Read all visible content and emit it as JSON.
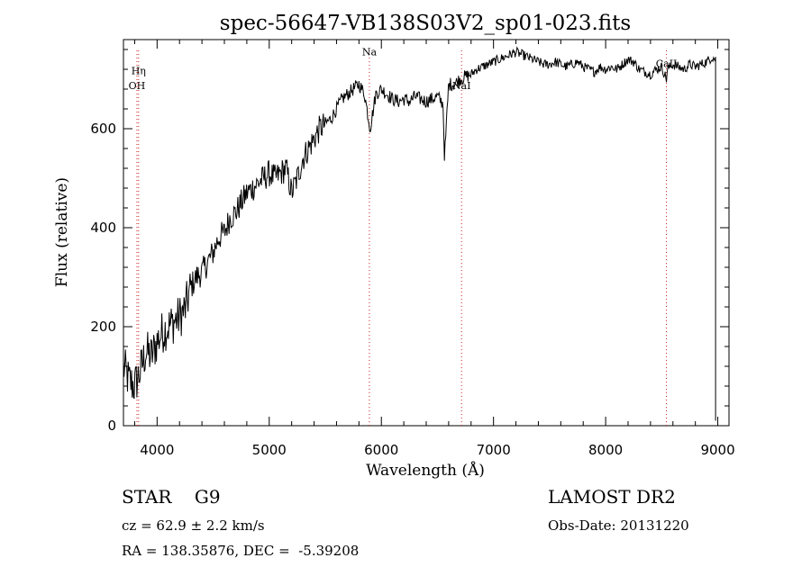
{
  "chart_data": {
    "type": "line",
    "title": "spec-56647-VB138S03V2_sp01-023.fits",
    "xlabel": "Wavelength (Å)",
    "ylabel": "Flux (relative)",
    "xlim": [
      3700,
      9100
    ],
    "ylim": [
      0,
      780
    ],
    "xticks": [
      4000,
      5000,
      6000,
      7000,
      8000,
      9000
    ],
    "yticks": [
      0,
      200,
      400,
      600
    ],
    "grid": false,
    "series": [
      {
        "x": [
          3700,
          3750,
          3800,
          3850,
          3900,
          3950,
          4000,
          4050,
          4100,
          4150,
          4200,
          4250,
          4300,
          4350,
          4400,
          4450,
          4500,
          4550,
          4600,
          4650,
          4700,
          4750,
          4800,
          4850,
          4900,
          4950,
          5000,
          5050,
          5100,
          5150,
          5200,
          5250,
          5300,
          5350,
          5400,
          5450,
          5500,
          5550,
          5600,
          5650,
          5700,
          5750,
          5800,
          5850,
          5900,
          5950,
          6000,
          6050,
          6100,
          6150,
          6200,
          6250,
          6300,
          6350,
          6400,
          6450,
          6500,
          6550,
          6563,
          6600,
          6650,
          6700,
          6750,
          6800,
          6850,
          6900,
          6950,
          7000,
          7050,
          7100,
          7150,
          7200,
          7250,
          7300,
          7350,
          7400,
          7450,
          7500,
          7550,
          7600,
          7650,
          7700,
          7750,
          7800,
          7850,
          7900,
          7950,
          8000,
          8050,
          8100,
          8150,
          8200,
          8250,
          8300,
          8350,
          8400,
          8450,
          8500,
          8542,
          8550,
          8600,
          8650,
          8700,
          8750,
          8800,
          8850,
          8900,
          8950,
          8980
        ],
        "y": [
          120,
          90,
          80,
          110,
          150,
          140,
          170,
          190,
          200,
          210,
          220,
          235,
          280,
          300,
          310,
          330,
          350,
          380,
          390,
          420,
          430,
          450,
          470,
          480,
          490,
          500,
          510,
          500,
          510,
          520,
          470,
          500,
          540,
          560,
          580,
          600,
          610,
          620,
          640,
          660,
          670,
          680,
          690,
          670,
          600,
          670,
          680,
          670,
          660,
          655,
          660,
          655,
          665,
          660,
          655,
          660,
          665,
          650,
          540,
          690,
          690,
          700,
          705,
          710,
          720,
          725,
          730,
          735,
          740,
          745,
          750,
          755,
          750,
          745,
          740,
          735,
          730,
          730,
          735,
          730,
          725,
          730,
          735,
          725,
          720,
          715,
          725,
          720,
          725,
          720,
          730,
          740,
          735,
          720,
          715,
          710,
          720,
          725,
          700,
          720,
          730,
          725,
          720,
          730,
          725,
          730,
          735,
          745,
          740
        ]
      }
    ],
    "lines": [
      {
        "name": "OH",
        "x": 3820,
        "label_flux": 680
      },
      {
        "name": "Hη",
        "x": 3835,
        "label_flux": 710
      },
      {
        "name": "Na",
        "x": 5893,
        "label_flux": 748
      },
      {
        "name": "NaI",
        "x": 6715,
        "label_flux": 680
      },
      {
        "name": "CaII",
        "x": 8542,
        "label_flux": 725
      }
    ],
    "colors": {
      "line": "#000000",
      "marker": "#cc2222",
      "axis": "#000000"
    }
  },
  "info": {
    "left_line1": "STAR    G9",
    "left_line2": "cz = 62.9 ± 2.2 km/s",
    "left_line3": "RA = 138.35876, DEC =  -5.39208",
    "right_line1": "LAMOST DR2",
    "right_line2": "Obs-Date: 20131220"
  }
}
